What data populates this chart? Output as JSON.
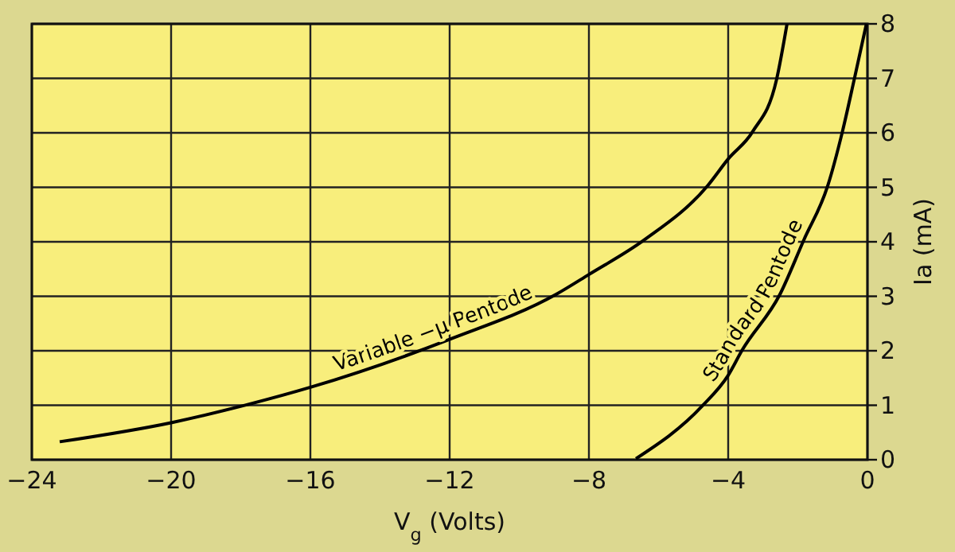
{
  "chart_data": {
    "type": "line",
    "xlabel": "V$_{g}$   (Volts)",
    "ylabel": "Ia  (mA)",
    "xlim": [
      -24,
      0
    ],
    "xticks": [
      -24,
      -20,
      -16,
      -12,
      -8,
      -4,
      0
    ],
    "ylim": [
      0,
      8
    ],
    "yticks": [
      0,
      1,
      2,
      3,
      4,
      5,
      6,
      7,
      8
    ],
    "grid": true,
    "marker": "none",
    "line_style": "solid",
    "series": [
      {
        "name": "Variable −μ Pentode",
        "color": "#000000",
        "x": [
          -23.2,
          -20,
          -17.76,
          -16,
          -12,
          -8.93,
          -8,
          -6.42,
          -4.59,
          -4,
          -3.3,
          -2.61,
          -2.31
        ],
        "values": [
          0.33,
          0.68,
          1.02,
          1.33,
          2.21,
          3.04,
          3.4,
          4.03,
          5.03,
          5.52,
          6.02,
          6.98,
          8
        ]
      },
      {
        "name": "Standard Pentode",
        "color": "#000000",
        "x": [
          -6.65,
          -4.74,
          -4,
          -3.6,
          -2.51,
          -1.83,
          -1.14,
          -0.72,
          -0.38,
          -0.03
        ],
        "values": [
          0.02,
          0.99,
          1.55,
          2.01,
          3.04,
          4.03,
          5.03,
          6.02,
          6.98,
          8
        ]
      }
    ]
  }
}
